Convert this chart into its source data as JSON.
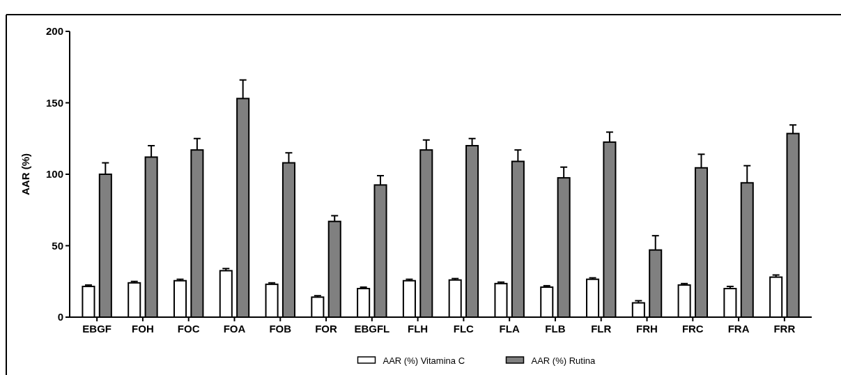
{
  "chart_data": {
    "type": "bar",
    "ylabel": "AAR (%)",
    "categories": [
      "EBGF",
      "FOH",
      "FOC",
      "FOA",
      "FOB",
      "FOR",
      "EBGFL",
      "FLH",
      "FLC",
      "FLA",
      "FLB",
      "FLR",
      "FRH",
      "FRC",
      "FRA",
      "FRR"
    ],
    "series": [
      {
        "name": "AAR (%) Vitamina C",
        "color": "#ffffff",
        "values": [
          21.5,
          24,
          25.5,
          32.5,
          23,
          14,
          20,
          25.5,
          26,
          23.5,
          21,
          26.5,
          10,
          22.5,
          20,
          28
        ],
        "errors": [
          [
            21.5,
            22.5
          ],
          [
            24,
            25
          ],
          [
            25.5,
            26.5
          ],
          [
            32.5,
            34
          ],
          [
            23,
            24
          ],
          [
            14,
            15
          ],
          [
            20,
            21
          ],
          [
            25.5,
            26.5
          ],
          [
            26,
            27
          ],
          [
            23.5,
            24.5
          ],
          [
            21,
            22
          ],
          [
            26.5,
            27.5
          ],
          [
            10,
            11.5
          ],
          [
            22.5,
            23.5
          ],
          [
            20,
            21.5
          ],
          [
            28,
            29.5
          ]
        ]
      },
      {
        "name": "AAR (%) Rutina",
        "color": "#808080",
        "values": [
          100,
          112,
          117,
          153,
          108,
          67,
          92.5,
          117,
          120,
          109,
          97.5,
          122.5,
          47,
          104.5,
          94,
          128.5
        ],
        "errors": [
          [
            100,
            108
          ],
          [
            112,
            120
          ],
          [
            117,
            125
          ],
          [
            153,
            166
          ],
          [
            108,
            115
          ],
          [
            67,
            71
          ],
          [
            92.5,
            99
          ],
          [
            117,
            124
          ],
          [
            120,
            125
          ],
          [
            109,
            117
          ],
          [
            97.5,
            105
          ],
          [
            122.5,
            129.5
          ],
          [
            47,
            57
          ],
          [
            104.5,
            114
          ],
          [
            94,
            106
          ],
          [
            128.5,
            134.5
          ]
        ]
      }
    ],
    "ylim": [
      0,
      200
    ],
    "yticks": [
      0,
      50,
      100,
      150,
      200
    ],
    "grid": false,
    "legend": "bottom"
  }
}
